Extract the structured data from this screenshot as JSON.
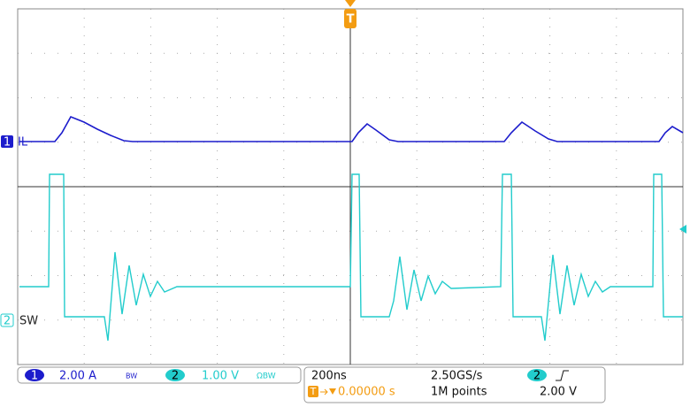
{
  "channels": [
    {
      "number": "1",
      "label": "IL",
      "scale": "2.00 A",
      "bandwidth": "BW"
    },
    {
      "number": "2",
      "label": "SW",
      "scale": "1.00 V",
      "bandwidth": "ΩBW"
    }
  ],
  "timebase": {
    "scale": "200ns",
    "sample_rate": "2.50GS/s",
    "record_length": "1M points",
    "trigger_position": "0.00000 s",
    "trigger_marker": "T"
  },
  "trigger": {
    "channel": "2",
    "level": "2.00 V"
  }
}
